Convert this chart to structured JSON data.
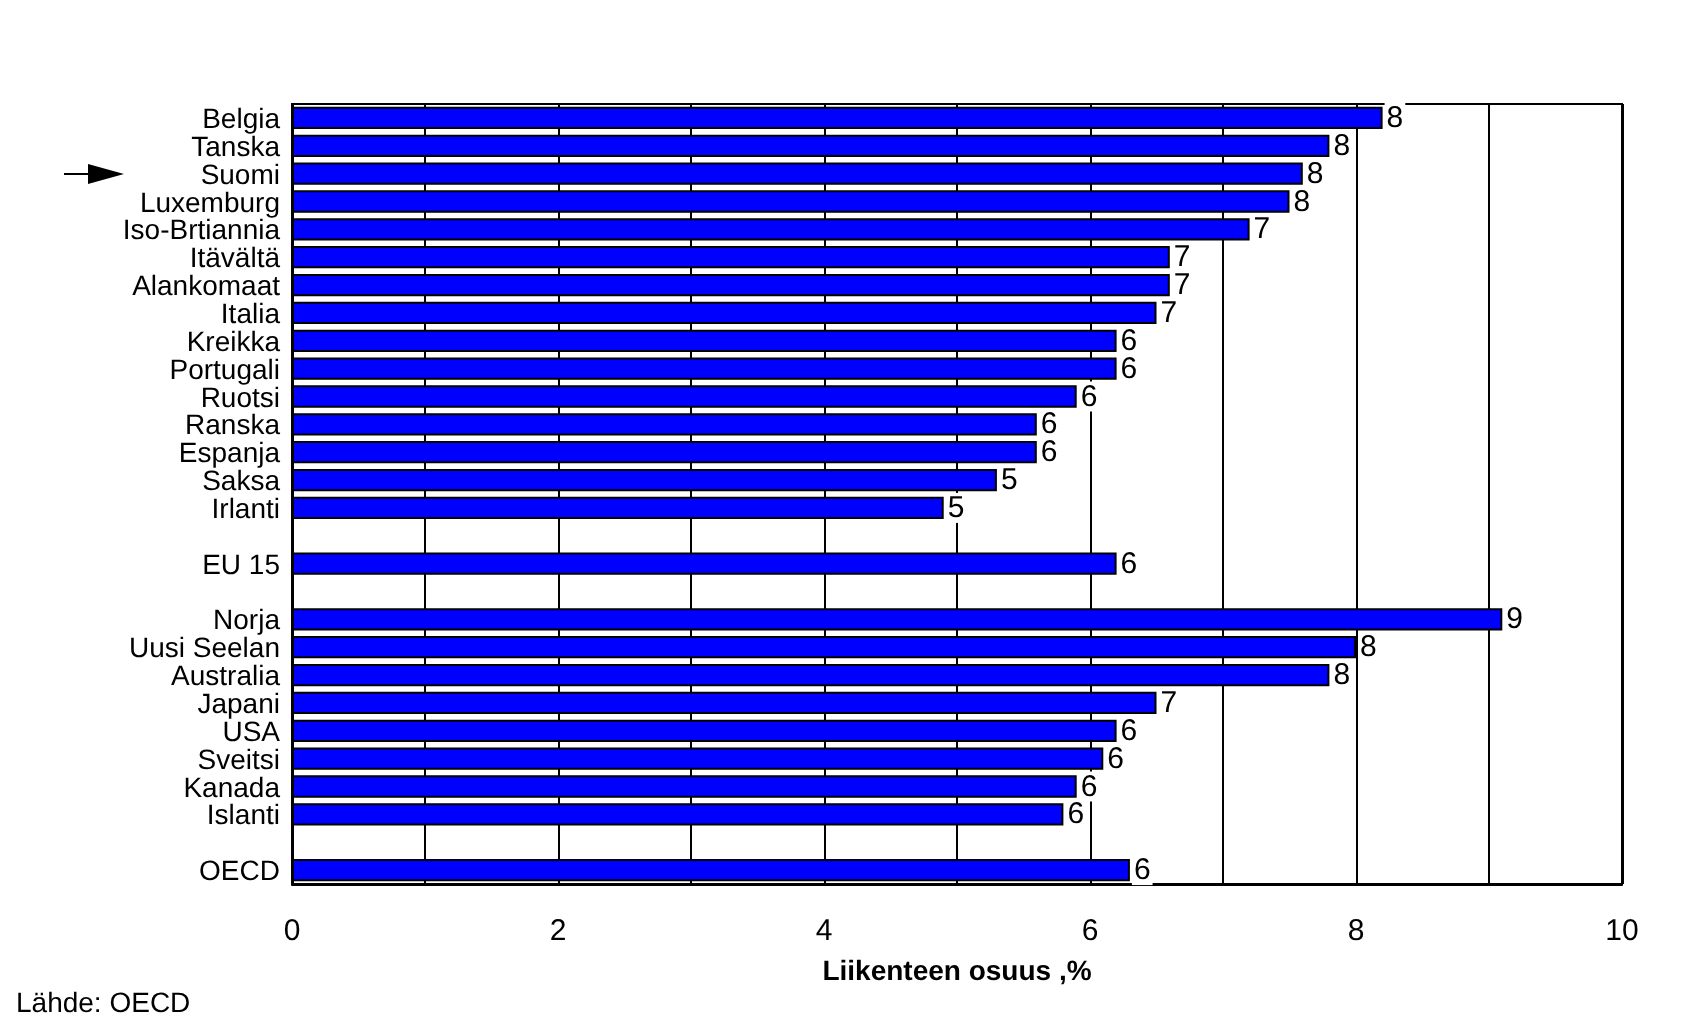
{
  "chart_data": {
    "type": "bar",
    "orientation": "horizontal",
    "xlabel": "Liikenteen osuus ,%",
    "annotations": [
      "Lähde: OECD"
    ],
    "categories": [
      "Belgia",
      "Tanska",
      "Suomi",
      "Luxemburg",
      "Iso-Brtiannia",
      "Itävältä",
      "Alankomaat",
      "Italia",
      "Kreikka",
      "Portugali",
      "Ruotsi",
      "Ranska",
      "Espanja",
      "Saksa",
      "Irlanti",
      null,
      "EU 15",
      null,
      "Norja",
      "Uusi Seelan",
      "Australia",
      "Japani",
      "USA",
      "Sveitsi",
      "Kanada",
      "Islanti",
      null,
      "OECD"
    ],
    "values": [
      8.2,
      7.8,
      7.6,
      7.5,
      7.2,
      6.6,
      6.6,
      6.5,
      6.2,
      6.2,
      5.9,
      5.6,
      5.6,
      5.3,
      4.9,
      null,
      6.2,
      null,
      9.1,
      8.0,
      7.8,
      6.5,
      6.2,
      6.1,
      5.9,
      5.8,
      null,
      6.3
    ],
    "value_labels": [
      "8",
      "8",
      "8",
      "8",
      "7",
      "7",
      "7",
      "7",
      "6",
      "6",
      "6",
      "6",
      "6",
      "5",
      "5",
      null,
      "6",
      null,
      "9",
      "8",
      "8",
      "7",
      "6",
      "6",
      "6",
      "6",
      null,
      "6"
    ],
    "color": "#0000ff",
    "xlim": [
      0,
      10
    ],
    "xticks": [
      0,
      {
        "value": 1,
        "label": null
      },
      2,
      {
        "value": 3,
        "label": null
      },
      4,
      {
        "value": 5,
        "label": null
      },
      6,
      {
        "value": 7,
        "label": null
      },
      8,
      {
        "value": 9,
        "label": null
      },
      10
    ],
    "grid": "x"
  }
}
